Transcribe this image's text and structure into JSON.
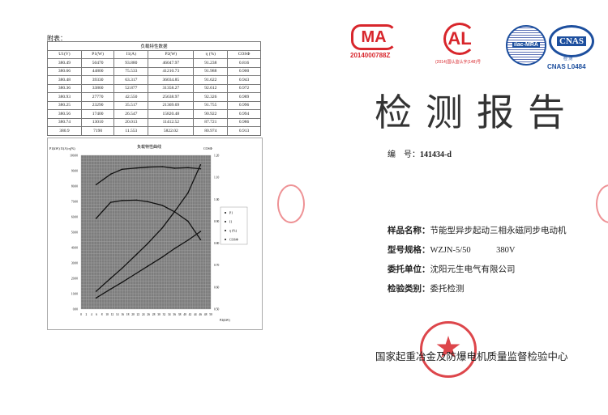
{
  "left_page": {
    "appendix_label": "附表：",
    "table": {
      "title": "负载特性数据",
      "headers": [
        "U1(V)",
        "P1(W)",
        "I1(A)",
        "P2(W)",
        "η (%)",
        "COSΦ"
      ],
      "rows": [
        [
          "380.49",
          "50470",
          "93.880",
          "46047.97",
          "91.238",
          "0.816"
        ],
        [
          "380.66",
          "44800",
          "75.533",
          "41210.73",
          "91.988",
          "0.900"
        ],
        [
          "380.48",
          "39330",
          "63.317",
          "36034.85",
          "91.622",
          "0.943"
        ],
        [
          "380.36",
          "33860",
          "52.877",
          "31358.27",
          "92.612",
          "0.972"
        ],
        [
          "380.93",
          "27770",
          "42.550",
          "25638.97",
          "92.326",
          "0.989"
        ],
        [
          "380.25",
          "23290",
          "35.517",
          "21369.69",
          "91.755",
          "0.996"
        ],
        [
          "380.56",
          "17400",
          "26.547",
          "15820.48",
          "90.922",
          "0.994"
        ],
        [
          "380.74",
          "13010",
          "20.013",
          "11412.52",
          "87.721",
          "0.986"
        ],
        [
          "380.9",
          "7190",
          "11.553",
          "5822.02",
          "80.974",
          "0.913"
        ]
      ]
    }
  },
  "chart_data": {
    "type": "line",
    "title": "负载特性曲线",
    "xlabel": "P2(kW)",
    "ylabel_left": "P1(kW) I1(A) η(%)",
    "ylabel_right": "COSΦ",
    "xlim": [
      0,
      50
    ],
    "ylim_left": [
      0,
      100
    ],
    "ylim_right": [
      0.5,
      1.2
    ],
    "x_ticks": [
      0,
      2,
      4,
      6,
      8,
      10,
      12,
      14,
      16,
      18,
      20,
      22,
      24,
      26,
      28,
      30,
      32,
      34,
      36,
      38,
      40,
      42,
      44,
      46,
      48,
      50
    ],
    "y_left_ticks": [
      "0.00",
      "10.00",
      "20.00",
      "30.00",
      "40.00",
      "50.00",
      "60.00",
      "70.00",
      "80.00",
      "90.00",
      "100.00"
    ],
    "y_right_ticks": [
      "0.50",
      "0.60",
      "0.70",
      "0.80",
      "0.90",
      "1.00",
      "1.10",
      "1.20"
    ],
    "grid": true,
    "legend_placement": "right",
    "x": [
      5.82,
      11.41,
      15.82,
      21.37,
      25.64,
      31.36,
      36.03,
      41.21,
      46.05
    ],
    "series": [
      {
        "name": "P1",
        "axis": "left",
        "values": [
          7.19,
          13.01,
          17.4,
          23.29,
          27.77,
          33.86,
          39.33,
          44.8,
          50.47
        ]
      },
      {
        "name": "I1",
        "axis": "left",
        "values": [
          11.553,
          20.013,
          26.547,
          35.517,
          42.55,
          52.877,
          63.317,
          75.533,
          93.88
        ]
      },
      {
        "name": "η (%)",
        "axis": "left",
        "values": [
          80.974,
          87.721,
          90.922,
          91.755,
          92.326,
          92.612,
          91.622,
          91.988,
          91.238
        ]
      },
      {
        "name": "COSΦ",
        "axis": "right",
        "values": [
          0.913,
          0.986,
          0.994,
          0.996,
          0.989,
          0.972,
          0.943,
          0.9,
          0.816
        ]
      }
    ]
  },
  "logos": {
    "cma": "MA",
    "cma_number": "2014000788Z",
    "cal": "AL",
    "cal_text": "(2014)国认监认字(148)号",
    "ilac": "ilac-MRA",
    "cnas": "CNAS",
    "cnas_sub": "检 测",
    "cnas_number": "CNAS L0484"
  },
  "report": {
    "title": "检测报告",
    "number_label": "编　号：",
    "number": "141434-d",
    "fields": [
      {
        "label": "样品名称：",
        "value": "节能型异步起动三相永磁同步电动机"
      },
      {
        "label": "型号规格：",
        "value": "WZJN-5/50　　　380V"
      },
      {
        "label": "委托单位：",
        "value": "沈阳元生电气有限公司"
      },
      {
        "label": "检验类别：",
        "value": "委托检测"
      }
    ],
    "issuer": "国家起重冶金及防爆电机质量监督检验中心"
  },
  "colors": {
    "seal": "#d8262c",
    "cnas_blue": "#1d4f9e"
  }
}
